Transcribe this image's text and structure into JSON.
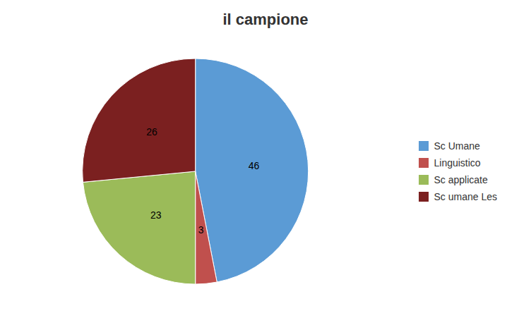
{
  "chart_data": {
    "type": "pie",
    "title": "il campione",
    "categories": [
      "Sc Umane",
      "Linguistico",
      "Sc applicate",
      "Sc umane Les"
    ],
    "values": [
      46,
      3,
      23,
      26
    ],
    "colors": [
      "#5B9BD5",
      "#C0504D",
      "#9BBB59",
      "#7B2020"
    ],
    "data_labels": true,
    "legend": "right"
  }
}
